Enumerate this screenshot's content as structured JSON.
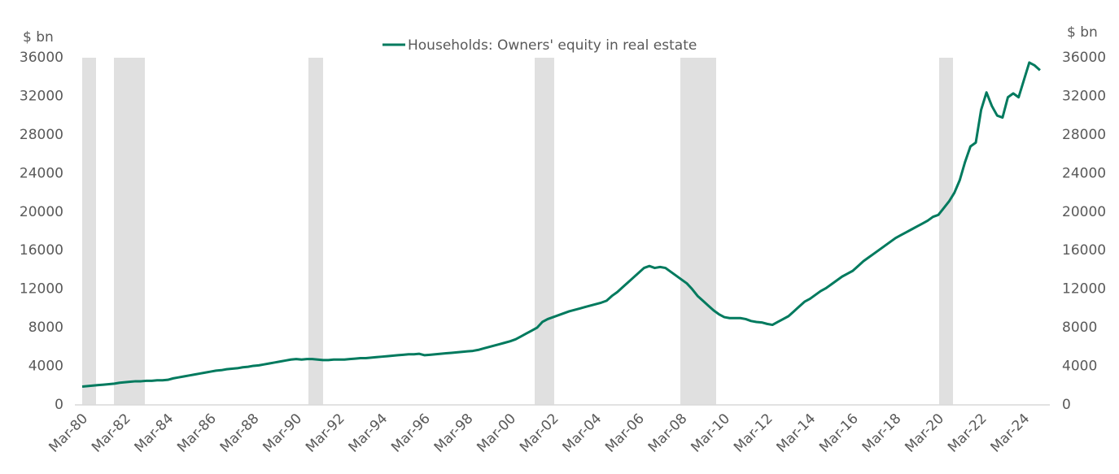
{
  "chart_data": {
    "type": "line",
    "legend": "top",
    "y_label": "$ bn",
    "y2_label": "$ bn",
    "categories": [
      "Mar-80",
      null,
      null,
      null,
      null,
      null,
      null,
      null,
      "Mar-82",
      null,
      null,
      null,
      null,
      null,
      null,
      null,
      "Mar-84",
      null,
      null,
      null,
      null,
      null,
      null,
      null,
      "Mar-86",
      null,
      null,
      null,
      null,
      null,
      null,
      null,
      "Mar-88",
      null,
      null,
      null,
      null,
      null,
      null,
      null,
      "Mar-90",
      null,
      null,
      null,
      null,
      null,
      null,
      null,
      "Mar-92",
      null,
      null,
      null,
      null,
      null,
      null,
      null,
      "Mar-94",
      null,
      null,
      null,
      null,
      null,
      null,
      null,
      "Mar-96",
      null,
      null,
      null,
      null,
      null,
      null,
      null,
      "Mar-98",
      null,
      null,
      null,
      null,
      null,
      null,
      null,
      "Mar-00",
      null,
      null,
      null,
      null,
      null,
      null,
      null,
      "Mar-02",
      null,
      null,
      null,
      null,
      null,
      null,
      null,
      "Mar-04",
      null,
      null,
      null,
      null,
      null,
      null,
      null,
      "Mar-06",
      null,
      null,
      null,
      null,
      null,
      null,
      null,
      "Mar-08",
      null,
      null,
      null,
      null,
      null,
      null,
      null,
      "Mar-10",
      null,
      null,
      null,
      null,
      null,
      null,
      null,
      "Mar-12",
      null,
      null,
      null,
      null,
      null,
      null,
      null,
      "Mar-14",
      null,
      null,
      null,
      null,
      null,
      null,
      null,
      "Mar-16",
      null,
      null,
      null,
      null,
      null,
      null,
      null,
      "Mar-18",
      null,
      null,
      null,
      null,
      null,
      null,
      null,
      "Mar-20",
      null,
      null,
      null,
      null,
      null,
      null,
      null,
      "Mar-22",
      null,
      null,
      null,
      null,
      null,
      null,
      null,
      "Mar-24",
      null,
      null,
      null
    ],
    "series": [
      {
        "name": "Households: Owners' equity in real estate",
        "color": "#007a5e",
        "values": [
          1900,
          1950,
          2000,
          2050,
          2100,
          2150,
          2200,
          2300,
          2350,
          2400,
          2450,
          2450,
          2500,
          2500,
          2550,
          2550,
          2600,
          2750,
          2850,
          2950,
          3050,
          3150,
          3250,
          3350,
          3450,
          3550,
          3600,
          3700,
          3750,
          3800,
          3900,
          3950,
          4050,
          4100,
          4200,
          4300,
          4400,
          4500,
          4600,
          4700,
          4750,
          4700,
          4750,
          4750,
          4700,
          4650,
          4650,
          4700,
          4700,
          4700,
          4750,
          4800,
          4850,
          4850,
          4900,
          4950,
          5000,
          5050,
          5100,
          5150,
          5200,
          5250,
          5250,
          5300,
          5150,
          5200,
          5250,
          5300,
          5350,
          5400,
          5450,
          5500,
          5550,
          5600,
          5700,
          5850,
          6000,
          6150,
          6300,
          6450,
          6600,
          6800,
          7100,
          7400,
          7700,
          8000,
          8600,
          8900,
          9100,
          9300,
          9500,
          9700,
          9850,
          10000,
          10150,
          10300,
          10450,
          10600,
          10800,
          11300,
          11700,
          12200,
          12700,
          13200,
          13700,
          14200,
          14400,
          14200,
          14300,
          14200,
          13800,
          13400,
          13000,
          12600,
          12000,
          11300,
          10800,
          10300,
          9800,
          9400,
          9100,
          9000,
          9000,
          9000,
          8900,
          8700,
          8600,
          8550,
          8400,
          8300,
          8600,
          8900,
          9200,
          9700,
          10200,
          10700,
          11000,
          11400,
          11800,
          12100,
          12500,
          12900,
          13300,
          13600,
          13900,
          14400,
          14900,
          15300,
          15700,
          16100,
          16500,
          16900,
          17300,
          17600,
          17900,
          18200,
          18500,
          18800,
          19100,
          19500,
          19700,
          20400,
          21100,
          22000,
          23300,
          25200,
          26800,
          27200,
          30600,
          32400,
          31000,
          30000,
          29800,
          31900,
          32300,
          31900,
          33700,
          35500,
          35200,
          34700
        ]
      }
    ],
    "ylim": [
      0,
      36000
    ],
    "yticks": [
      0,
      4000,
      8000,
      12000,
      16000,
      20000,
      24000,
      28000,
      32000,
      36000
    ],
    "y2lim": [
      0,
      36000
    ],
    "y2ticks": [
      0,
      4000,
      8000,
      12000,
      16000,
      20000,
      24000,
      28000,
      32000,
      36000
    ]
  }
}
